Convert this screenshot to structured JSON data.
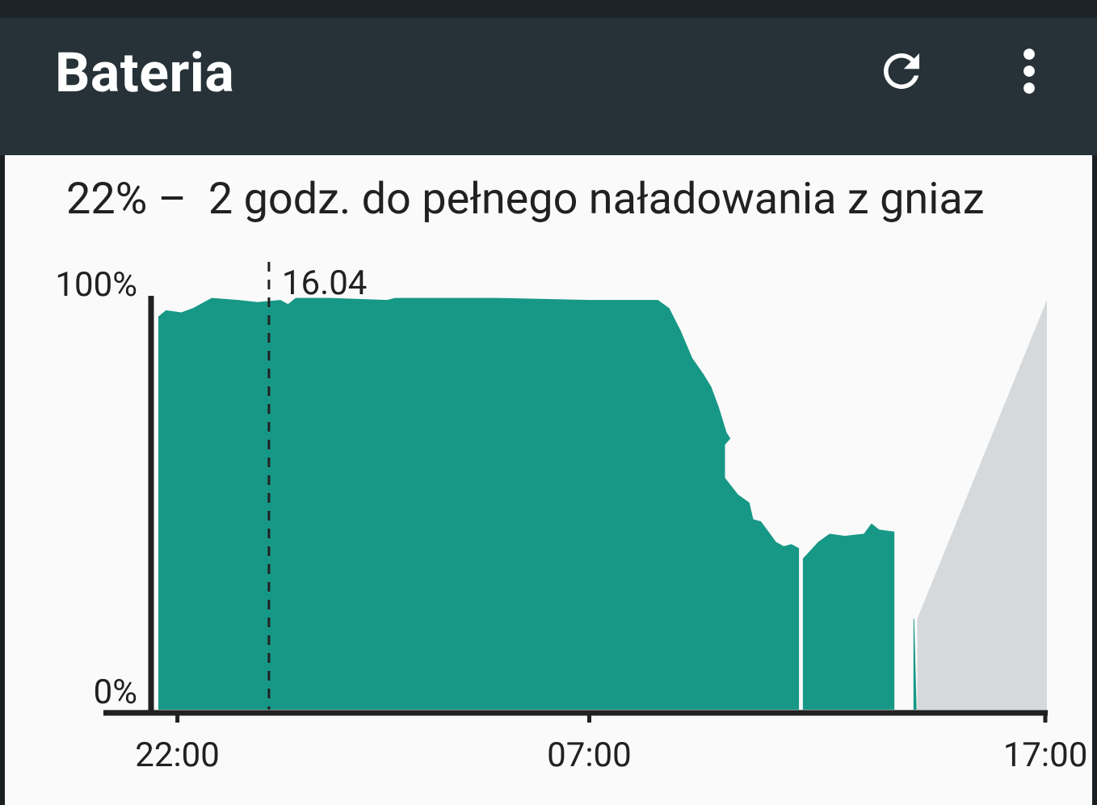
{
  "app_bar": {
    "title": "Bateria",
    "actions": [
      {
        "icon": "refresh-icon"
      },
      {
        "icon": "more-vert-icon"
      }
    ],
    "background": "#263238"
  },
  "battery": {
    "summary": "22% –  2 godz. do pełnego naładowania z gniaz"
  },
  "chart_data": {
    "type": "area",
    "title": "",
    "y_ticks": [
      "100%",
      "0%"
    ],
    "ylim": [
      0,
      100
    ],
    "x_ticks": [
      "22:00",
      "07:00",
      "17:00"
    ],
    "x_range": [
      "21:35",
      "17:00"
    ],
    "marker": {
      "label": "16.04",
      "time": "00:00"
    },
    "series": [
      {
        "fill": "#179886",
        "segments": [
          [
            [
              "21:35",
              95
            ],
            [
              "21:45",
              96.5
            ],
            [
              "22:05",
              96
            ],
            [
              "22:20",
              97
            ],
            [
              "22:45",
              99.5
            ],
            [
              "23:20",
              99
            ],
            [
              "23:45",
              98.5
            ],
            [
              "00:15",
              99
            ],
            [
              "00:25",
              98
            ],
            [
              "00:35",
              99.5
            ],
            [
              "01:20",
              99.5
            ],
            [
              "02:35",
              99
            ],
            [
              "02:45",
              99.5
            ],
            [
              "05:00",
              99.5
            ],
            [
              "07:00",
              99
            ],
            [
              "08:30",
              99
            ],
            [
              "08:45",
              97
            ],
            [
              "09:00",
              91.5
            ],
            [
              "09:15",
              85
            ],
            [
              "09:30",
              81
            ],
            [
              "09:40",
              78
            ],
            [
              "09:50",
              73
            ],
            [
              "10:00",
              67
            ],
            [
              "10:05",
              65.5
            ],
            [
              "09:58",
              64
            ],
            [
              "09:58",
              56
            ],
            [
              "10:15",
              52
            ],
            [
              "10:30",
              50
            ],
            [
              "10:35",
              46
            ],
            [
              "10:45",
              45.5
            ],
            [
              "10:55",
              43
            ],
            [
              "11:05",
              40.5
            ],
            [
              "11:15",
              39.5
            ],
            [
              "11:25",
              40
            ],
            [
              "11:35",
              39
            ]
          ],
          [
            [
              "11:40",
              36.5
            ],
            [
              "12:00",
              40.5
            ],
            [
              "12:15",
              42.5
            ],
            [
              "12:35",
              42
            ],
            [
              "13:00",
              42.5
            ],
            [
              "13:10",
              45
            ],
            [
              "13:20",
              43.5
            ],
            [
              "13:40",
              43
            ]
          ],
          [
            [
              "14:05",
              22
            ],
            [
              "14:06",
              22
            ]
          ]
        ]
      },
      {
        "name": "",
        "fill": "#d6d9db",
        "kind": "projection",
        "points": [
          [
            "14:10",
            22
          ],
          [
            "17:00",
            99
          ]
        ]
      }
    ]
  }
}
